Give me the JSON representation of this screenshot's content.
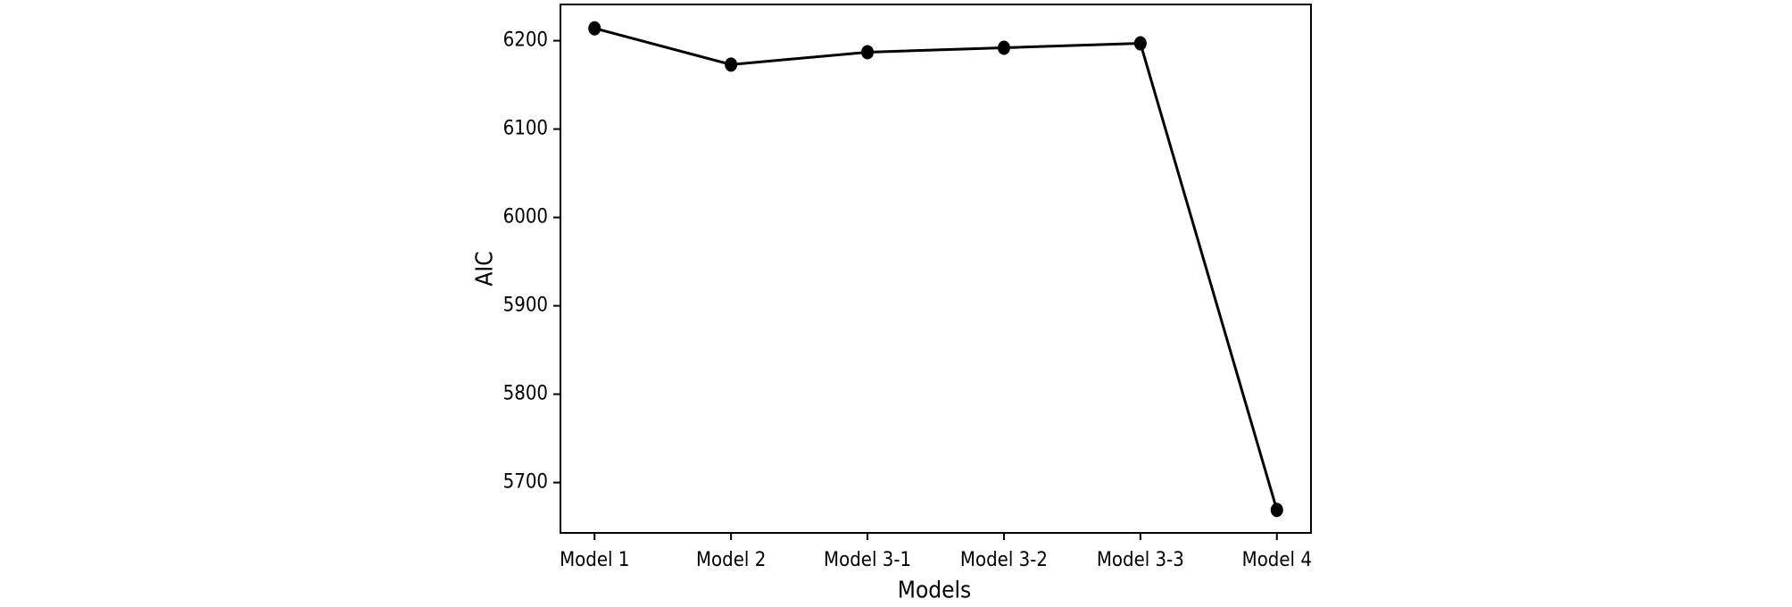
{
  "chart_data": {
    "type": "line",
    "x_label": "Models",
    "y_label": "AIC",
    "categories": [
      "Model 1",
      "Model 2",
      "Model 3-1",
      "Model 3-2",
      "Model 3-3",
      "Model 4"
    ],
    "values": [
      6214,
      6173,
      6187,
      6192,
      6197,
      5669
    ],
    "color": "#000000",
    "ylim": [
      5643,
      6241
    ],
    "yticks": [
      5700,
      5800,
      5900,
      6000,
      6100,
      6200
    ],
    "grid": false
  }
}
